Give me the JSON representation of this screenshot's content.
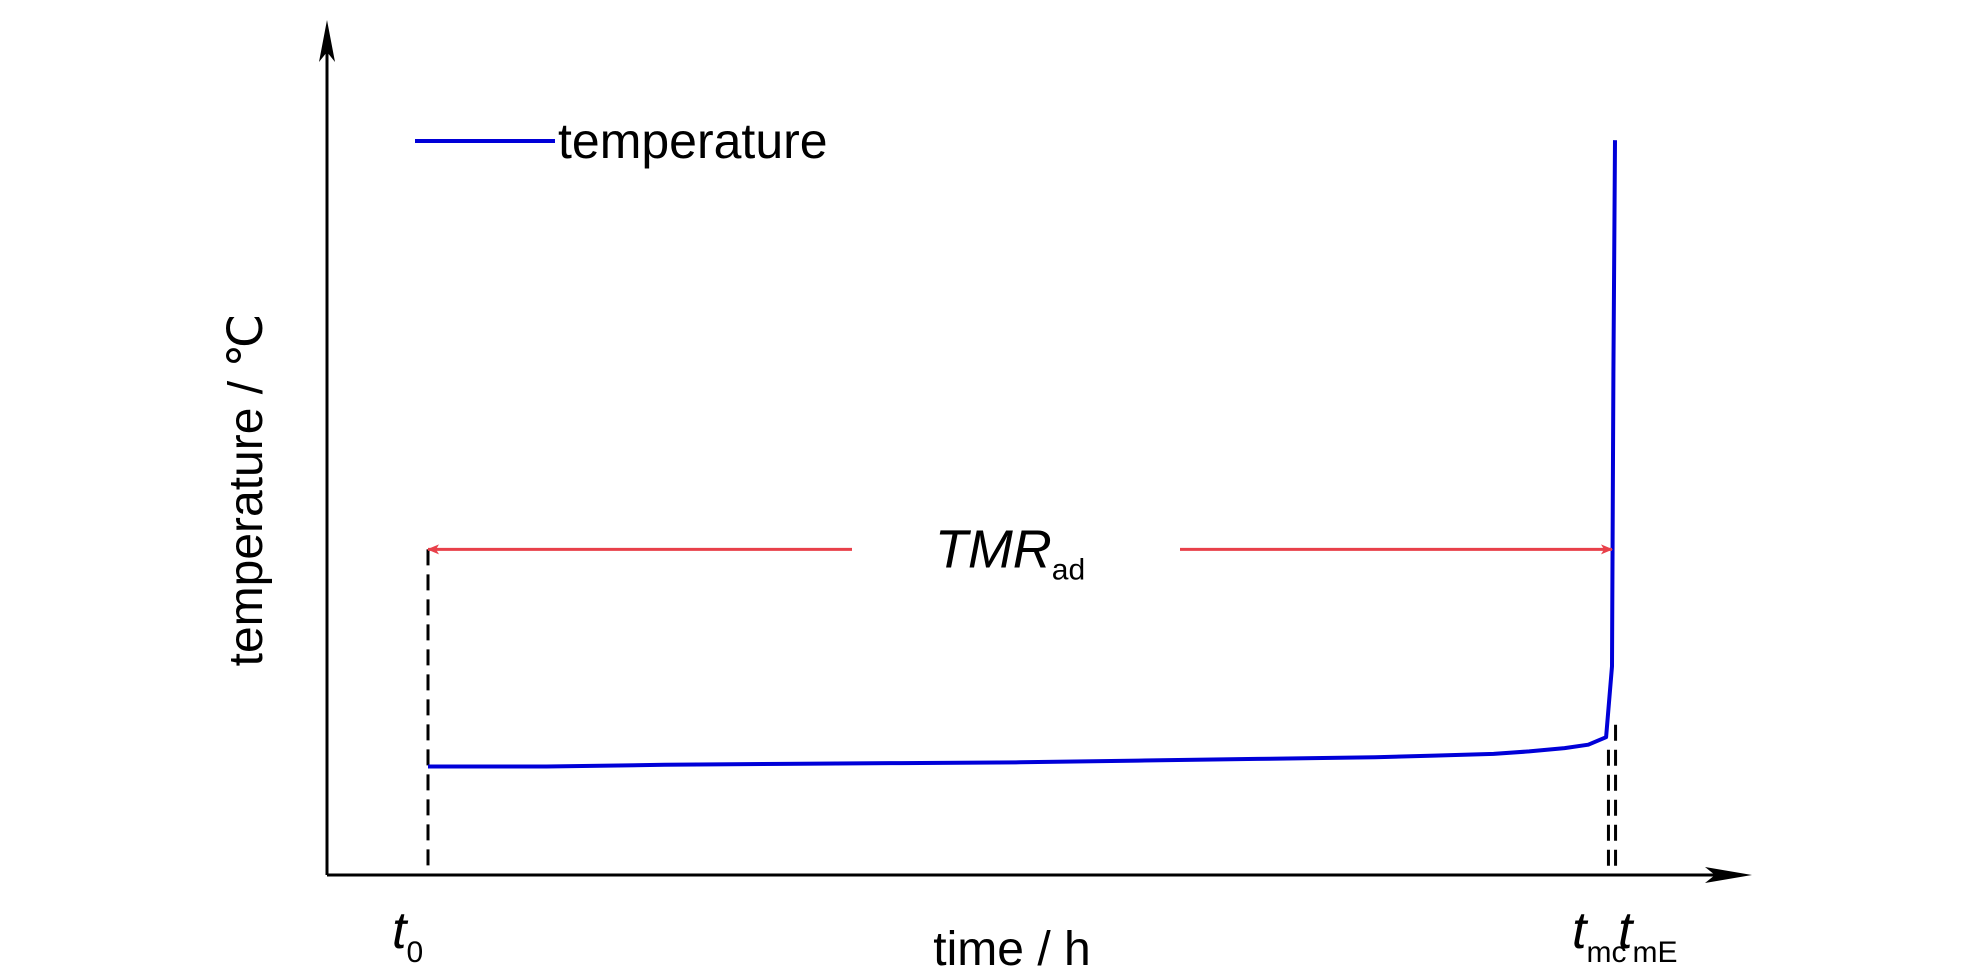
{
  "chart_data": {
    "type": "line",
    "xlabel": "time / h",
    "ylabel": "temperature / ℃",
    "legend": {
      "position": "top-left",
      "entries": [
        "temperature"
      ]
    },
    "grid": false,
    "series": [
      {
        "name": "temperature",
        "color": "#0000d8",
        "x": [
          0.0,
          0.1,
          0.2,
          0.3,
          0.4,
          0.5,
          0.6,
          0.7,
          0.8,
          0.85,
          0.9,
          0.93,
          0.96,
          0.98,
          0.995,
          1.0,
          1.0012,
          1.0025
        ],
        "y": [
          0.13,
          0.13,
          0.132,
          0.133,
          0.134,
          0.135,
          0.137,
          0.139,
          0.141,
          0.143,
          0.145,
          0.148,
          0.152,
          0.156,
          0.165,
          0.25,
          0.6,
          0.88
        ]
      }
    ],
    "annotations": {
      "arrow": {
        "label_main": "TMR",
        "label_sub": "ad",
        "y": 0.39,
        "color": "#e8404a"
      },
      "markers": [
        {
          "main": "t",
          "sub": "0",
          "x": 0.0
        },
        {
          "main": "t",
          "sub": "mc",
          "x": 0.997
        },
        {
          "main": "t",
          "sub": "mE",
          "x": 1.003
        }
      ]
    }
  }
}
